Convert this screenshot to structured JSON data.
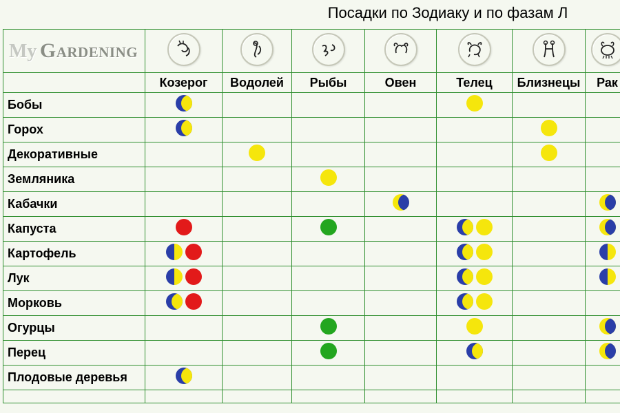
{
  "title": "Посадки по Зодиаку и по фазам Л",
  "logo": {
    "my": "My",
    "gardening": "Gardening"
  },
  "colors": {
    "border": "#2f8f2f",
    "bg": "#f5f8f0",
    "moon_yellow": "#f5e60c",
    "moon_red": "#e21a1a",
    "moon_green": "#23a61f",
    "moon_blue": "#2a3ea8",
    "icon_ring": "#c5c7b8"
  },
  "columns": [
    {
      "key": "capricorn",
      "label": "Козерог"
    },
    {
      "key": "aquarius",
      "label": "Водолей"
    },
    {
      "key": "pisces",
      "label": "Рыбы"
    },
    {
      "key": "aries",
      "label": "Овен"
    },
    {
      "key": "taurus",
      "label": "Телец"
    },
    {
      "key": "gemini",
      "label": "Близнецы"
    },
    {
      "key": "cancer",
      "label": "Рак"
    }
  ],
  "rows": [
    {
      "label": "Бобы",
      "cells": [
        [
          "cres-by"
        ],
        [],
        [],
        [],
        [
          "full-yellow"
        ],
        [],
        []
      ]
    },
    {
      "label": "Горох",
      "cells": [
        [
          "cres-by"
        ],
        [],
        [],
        [],
        [],
        [
          "full-yellow"
        ],
        []
      ]
    },
    {
      "label": "Декоративные",
      "cells": [
        [],
        [
          "full-yellow"
        ],
        [],
        [],
        [],
        [
          "full-yellow"
        ],
        []
      ]
    },
    {
      "label": "Земляника",
      "cells": [
        [],
        [],
        [
          "full-yellow"
        ],
        [],
        [],
        [],
        []
      ]
    },
    {
      "label": "Кабачки",
      "cells": [
        [],
        [],
        [],
        [
          "cres-yb"
        ],
        [],
        [],
        [
          "cres-yb"
        ]
      ]
    },
    {
      "label": "Капуста",
      "cells": [
        [
          "full-red"
        ],
        [],
        [
          "full-green"
        ],
        [],
        [
          "cres-by",
          "full-yellow"
        ],
        [],
        [
          "cres-yb"
        ]
      ]
    },
    {
      "label": "Картофель",
      "cells": [
        [
          "half-by",
          "full-red"
        ],
        [],
        [],
        [],
        [
          "cres-by",
          "full-yellow"
        ],
        [],
        [
          "half-by"
        ]
      ]
    },
    {
      "label": "Лук",
      "cells": [
        [
          "half-by",
          "full-red"
        ],
        [],
        [],
        [],
        [
          "cres-by",
          "full-yellow"
        ],
        [],
        [
          "half-by"
        ]
      ]
    },
    {
      "label": "Морковь",
      "cells": [
        [
          "cres-by",
          "full-red"
        ],
        [],
        [],
        [],
        [
          "cres-by",
          "full-yellow"
        ],
        [],
        []
      ]
    },
    {
      "label": "Огурцы",
      "cells": [
        [],
        [],
        [
          "full-green"
        ],
        [],
        [
          "full-yellow"
        ],
        [],
        [
          "cres-yb"
        ]
      ]
    },
    {
      "label": "Перец",
      "cells": [
        [],
        [],
        [
          "full-green"
        ],
        [],
        [
          "cres-by"
        ],
        [],
        [
          "cres-yb"
        ]
      ]
    },
    {
      "label": "Плодовые деревья",
      "cells": [
        [
          "cres-by"
        ],
        [],
        [],
        [],
        [],
        [],
        []
      ]
    },
    {
      "label": "",
      "cells": [
        [],
        [],
        [],
        [],
        [],
        [],
        []
      ]
    }
  ]
}
